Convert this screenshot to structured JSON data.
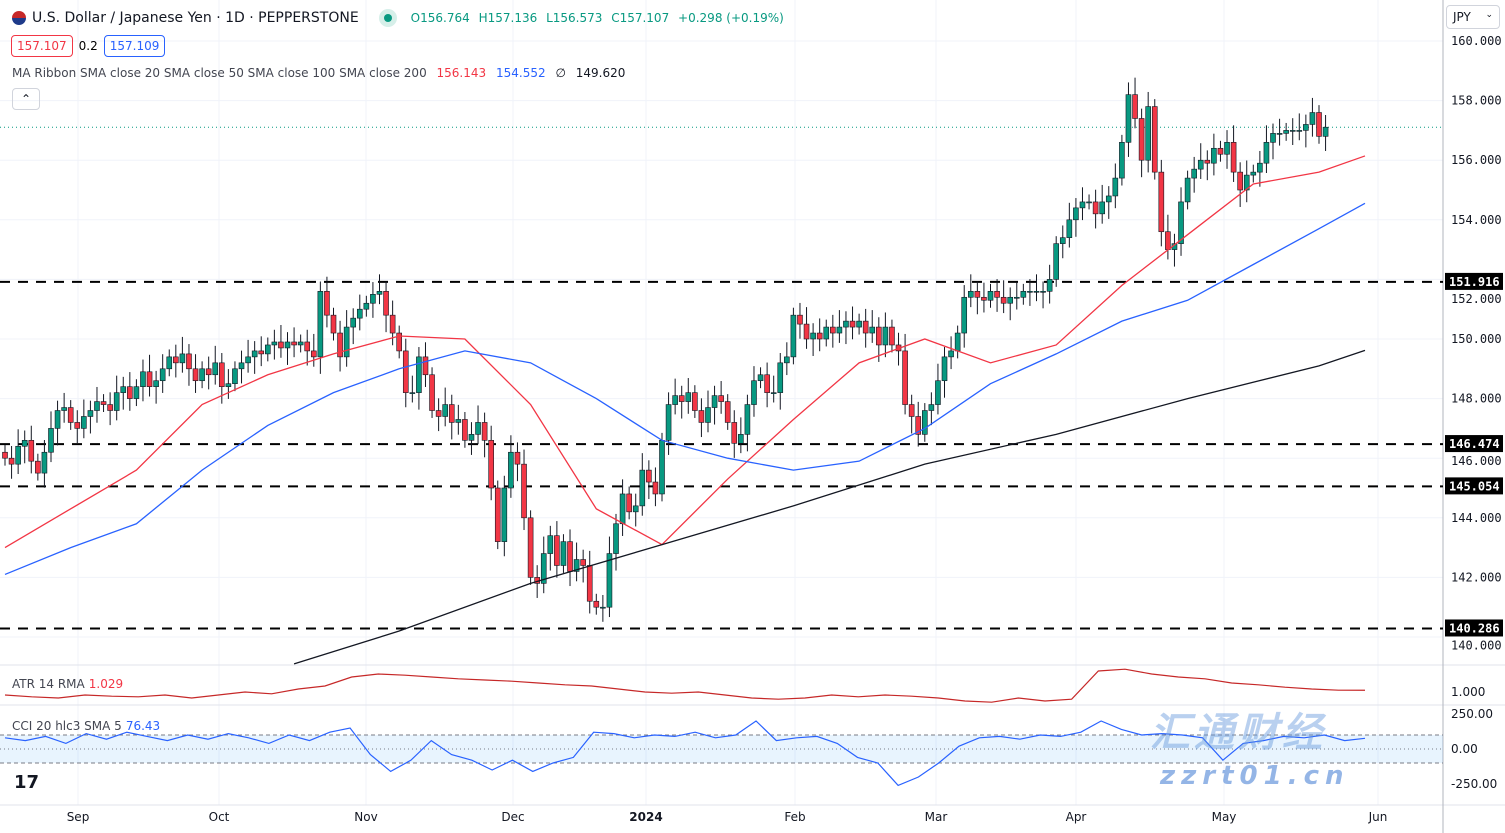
{
  "header": {
    "title": "U.S. Dollar / Japanese Yen · 1D · PEPPERSTONE",
    "open": "O156.764",
    "high": "H157.136",
    "low": "L156.573",
    "close": "C157.107",
    "change": "+0.298 (+0.19%)"
  },
  "quote": {
    "sell": "157.107",
    "spread": "0.2",
    "buy": "157.109"
  },
  "ma_ribbon": {
    "label": "MA Ribbon SMA close 20 SMA close 50 SMA close 100 SMA close 200",
    "v20": "156.143",
    "v50": "154.552",
    "v100": "∅",
    "v200": "149.620"
  },
  "currency": "JPY",
  "atr": {
    "label": "ATR 14 RMA",
    "value": "1.029"
  },
  "cci": {
    "label": "CCI 20 hlc3 SMA 5",
    "value": "76.43"
  },
  "watermark": "zzrt01.cn",
  "colors": {
    "up": "#089981",
    "down": "#f23645",
    "ma20": "#f23645",
    "ma50": "#2962ff",
    "ma200": "#131722",
    "atr": "#c62828",
    "cci": "#2962ff"
  },
  "chart_data": {
    "type": "candlestick",
    "ylim": [
      140,
      160
    ],
    "y_ticks": [
      "160.000",
      "158.000",
      "156.000",
      "154.000",
      "152.000",
      "150.000",
      "148.000",
      "146.000",
      "144.000",
      "142.000",
      "140.000"
    ],
    "x_ticks": [
      "Sep",
      "Oct",
      "Nov",
      "Dec",
      "2024",
      "Feb",
      "Mar",
      "Apr",
      "May",
      "Jun"
    ],
    "levels": [
      "151.916",
      "146.474",
      "145.054",
      "140.286"
    ],
    "last_price": 157.107,
    "closes": [
      146.0,
      145.8,
      146.4,
      146.6,
      145.9,
      145.5,
      146.2,
      147.0,
      147.6,
      147.7,
      147.2,
      147.0,
      147.4,
      147.6,
      147.9,
      147.8,
      147.6,
      148.2,
      148.4,
      148.0,
      148.4,
      148.9,
      148.4,
      148.6,
      149.0,
      149.4,
      149.2,
      149.5,
      149.0,
      148.6,
      149.0,
      148.8,
      149.2,
      148.4,
      148.5,
      149.0,
      149.2,
      149.4,
      149.6,
      149.5,
      149.8,
      149.9,
      149.7,
      149.9,
      149.8,
      149.9,
      149.6,
      149.4,
      151.6,
      150.8,
      150.2,
      149.4,
      150.4,
      150.7,
      151.0,
      151.2,
      151.5,
      151.6,
      150.8,
      150.2,
      149.6,
      148.2,
      148.2,
      149.4,
      148.8,
      147.6,
      147.4,
      147.8,
      147.2,
      147.3,
      146.6,
      146.8,
      147.2,
      146.6,
      145.0,
      143.2,
      145.0,
      146.2,
      145.8,
      144.0,
      142.0,
      141.8,
      142.8,
      143.4,
      142.4,
      143.2,
      142.2,
      142.6,
      142.4,
      141.2,
      141.0,
      141.0,
      142.8,
      143.8,
      144.8,
      144.2,
      144.4,
      145.6,
      145.2,
      144.8,
      146.6,
      147.8,
      148.1,
      147.9,
      148.2,
      147.6,
      147.2,
      147.7,
      148.1,
      147.9,
      147.2,
      146.5,
      146.8,
      147.8,
      148.6,
      148.8,
      148.2,
      148.2,
      149.2,
      149.4,
      150.8,
      150.5,
      150.0,
      150.2,
      150.0,
      150.4,
      150.2,
      150.4,
      150.6,
      150.4,
      150.6,
      150.2,
      150.4,
      149.8,
      150.4,
      149.8,
      149.6,
      147.8,
      147.4,
      146.8,
      147.6,
      147.8,
      148.6,
      149.4,
      149.6,
      150.2,
      151.4,
      151.6,
      151.4,
      151.3,
      151.6,
      151.4,
      151.2,
      151.4,
      151.4,
      151.6,
      151.6,
      151.6,
      151.6,
      152.0,
      153.2,
      153.4,
      154.0,
      154.4,
      154.6,
      154.6,
      154.2,
      154.6,
      154.8,
      155.4,
      156.6,
      158.2,
      157.4,
      156.0,
      157.8,
      155.6,
      153.6,
      153.0,
      153.2,
      154.6,
      155.4,
      155.7,
      156.0,
      155.9,
      156.4,
      156.2,
      156.6,
      155.6,
      155.0,
      155.5,
      155.6,
      155.9,
      156.6,
      156.9,
      156.9,
      157.0,
      157.0,
      157.0,
      157.2,
      157.6,
      156.8,
      157.107
    ],
    "sma20": [
      [
        0,
        143.0
      ],
      [
        10,
        144.3
      ],
      [
        20,
        145.6
      ],
      [
        30,
        147.8
      ],
      [
        40,
        148.8
      ],
      [
        50,
        149.5
      ],
      [
        60,
        150.1
      ],
      [
        70,
        150.0
      ],
      [
        80,
        147.8
      ],
      [
        90,
        144.3
      ],
      [
        100,
        143.1
      ],
      [
        110,
        145.3
      ],
      [
        120,
        147.3
      ],
      [
        130,
        149.2
      ],
      [
        140,
        150.0
      ],
      [
        150,
        149.2
      ],
      [
        160,
        149.8
      ],
      [
        170,
        151.8
      ],
      [
        180,
        153.5
      ],
      [
        190,
        155.2
      ],
      [
        200,
        155.6
      ],
      [
        207,
        156.143
      ]
    ],
    "sma50": [
      [
        0,
        142.1
      ],
      [
        10,
        143.0
      ],
      [
        20,
        143.8
      ],
      [
        30,
        145.6
      ],
      [
        40,
        147.1
      ],
      [
        50,
        148.2
      ],
      [
        60,
        149.0
      ],
      [
        70,
        149.6
      ],
      [
        80,
        149.2
      ],
      [
        90,
        148.0
      ],
      [
        100,
        146.6
      ],
      [
        110,
        146.0
      ],
      [
        120,
        145.6
      ],
      [
        130,
        145.9
      ],
      [
        140,
        147.0
      ],
      [
        150,
        148.5
      ],
      [
        160,
        149.5
      ],
      [
        170,
        150.6
      ],
      [
        180,
        151.3
      ],
      [
        190,
        152.5
      ],
      [
        200,
        153.7
      ],
      [
        207,
        154.552
      ]
    ],
    "sma200": [
      [
        44,
        139.1
      ],
      [
        60,
        140.2
      ],
      [
        80,
        141.8
      ],
      [
        100,
        143.1
      ],
      [
        120,
        144.4
      ],
      [
        140,
        145.8
      ],
      [
        160,
        146.8
      ],
      [
        180,
        148.0
      ],
      [
        200,
        149.1
      ],
      [
        207,
        149.62
      ]
    ],
    "atr": [
      0.95,
      0.92,
      0.9,
      0.95,
      0.93,
      0.92,
      0.95,
      0.9,
      0.95,
      1.0,
      0.97,
      1.05,
      1.1,
      1.25,
      1.3,
      1.28,
      1.25,
      1.22,
      1.2,
      1.18,
      1.15,
      1.12,
      1.1,
      1.05,
      1.0,
      0.98,
      1.0,
      0.95,
      0.9,
      0.88,
      0.9,
      0.95,
      0.92,
      0.95,
      0.93,
      0.9,
      0.85,
      0.83,
      0.9,
      0.85,
      0.88,
      1.35,
      1.38,
      1.3,
      1.25,
      1.22,
      1.15,
      1.12,
      1.08,
      1.05,
      1.03,
      1.029
    ],
    "atr_ticks": [
      "1.000"
    ],
    "cci": [
      80,
      60,
      90,
      40,
      110,
      70,
      120,
      90,
      60,
      100,
      70,
      110,
      80,
      40,
      100,
      60,
      120,
      150,
      -40,
      -160,
      -80,
      60,
      -40,
      -80,
      -150,
      -80,
      -160,
      -100,
      -60,
      120,
      110,
      80,
      100,
      90,
      120,
      80,
      100,
      200,
      60,
      80,
      90,
      40,
      -60,
      -100,
      -260,
      -200,
      -100,
      20,
      80,
      90,
      70,
      100,
      90,
      120,
      200,
      140,
      100,
      110,
      100,
      80,
      -80,
      40,
      60,
      90,
      80,
      100,
      60,
      76.43
    ],
    "cci_ticks": [
      "250.00",
      "0.00",
      "-250.00"
    ]
  }
}
